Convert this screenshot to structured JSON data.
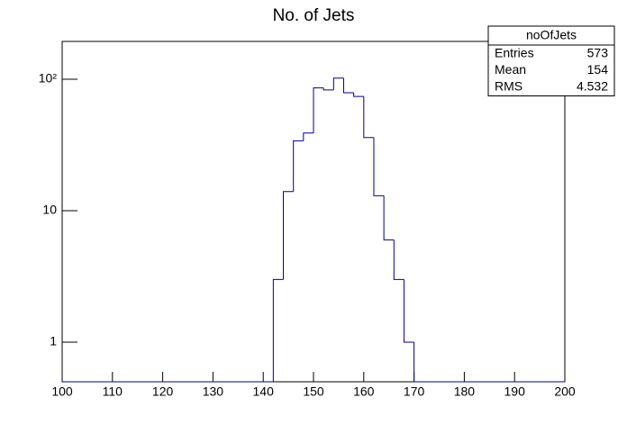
{
  "chart_data": {
    "type": "histogram",
    "title": "No. of Jets",
    "bins": [
      100,
      102,
      104,
      106,
      108,
      110,
      112,
      114,
      116,
      118,
      120,
      122,
      124,
      126,
      128,
      130,
      132,
      134,
      136,
      138,
      140,
      142,
      144,
      146,
      148,
      150,
      152,
      154,
      156,
      158,
      160,
      162,
      164,
      166,
      168,
      170,
      172,
      174,
      176,
      178,
      180,
      182,
      184,
      186,
      188,
      190,
      192,
      194,
      196,
      198,
      200
    ],
    "values": [
      0,
      0,
      0,
      0,
      0,
      0,
      0,
      0,
      0,
      0,
      0,
      0,
      0,
      0,
      0,
      0,
      0,
      0,
      0,
      0,
      0,
      3,
      14,
      34,
      39,
      86,
      83,
      102,
      79,
      74,
      36,
      13,
      6,
      3,
      1,
      0,
      0,
      0,
      0,
      0,
      0,
      0,
      0,
      0,
      0,
      0,
      0,
      0,
      0,
      0
    ],
    "color": "#000099",
    "xlim": [
      100,
      200
    ],
    "xticks": [
      100,
      110,
      120,
      130,
      140,
      150,
      160,
      170,
      180,
      190,
      200
    ],
    "ylim": [
      0.5,
      194
    ],
    "log_y": true,
    "yticks": [
      1,
      10,
      {
        "value": 100,
        "label": "10²"
      }
    ],
    "stats": {
      "title": "noOfJets",
      "rows": [
        [
          "Entries",
          "573"
        ],
        [
          "Mean",
          "154"
        ],
        [
          "RMS",
          "4.532"
        ]
      ]
    }
  }
}
